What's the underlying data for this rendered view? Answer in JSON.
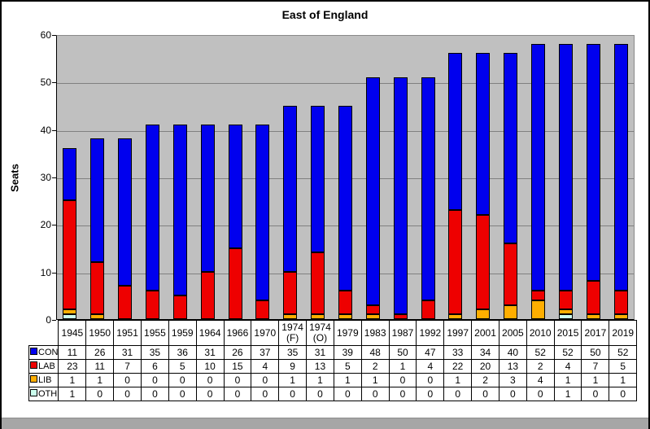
{
  "chart_data": {
    "type": "bar",
    "stacked": true,
    "title": "East of England",
    "ylabel": "Seats",
    "xlabel": "",
    "ylim": [
      0,
      60
    ],
    "yticks": [
      0,
      10,
      20,
      30,
      40,
      50,
      60
    ],
    "grid": "horizontal",
    "plot_bg": "#C0C0C0",
    "legend_position": "table-left-column",
    "categories": [
      "1945",
      "1950",
      "1951",
      "1955",
      "1959",
      "1964",
      "1966",
      "1970",
      "1974 (F)",
      "1974 (O)",
      "1979",
      "1983",
      "1987",
      "1992",
      "1997",
      "2001",
      "2005",
      "2010",
      "2015",
      "2017",
      "2019"
    ],
    "stack_order_bottom_to_top": [
      "OTH",
      "LIB",
      "LAB",
      "CON"
    ],
    "series": [
      {
        "name": "CON",
        "color": "#0000EE",
        "values": [
          11,
          26,
          31,
          35,
          36,
          31,
          26,
          37,
          35,
          31,
          39,
          48,
          50,
          47,
          33,
          34,
          40,
          52,
          52,
          50,
          52
        ]
      },
      {
        "name": "LAB",
        "color": "#EE0000",
        "values": [
          23,
          11,
          7,
          6,
          5,
          10,
          15,
          4,
          9,
          13,
          5,
          2,
          1,
          4,
          22,
          20,
          13,
          2,
          4,
          7,
          5
        ]
      },
      {
        "name": "LIB",
        "color": "#FFAE00",
        "values": [
          1,
          1,
          0,
          0,
          0,
          0,
          0,
          0,
          1,
          1,
          1,
          1,
          0,
          0,
          1,
          2,
          3,
          4,
          1,
          1,
          1
        ]
      },
      {
        "name": "OTH",
        "color": "#CCFFEE",
        "values": [
          1,
          0,
          0,
          0,
          0,
          0,
          0,
          0,
          0,
          0,
          0,
          0,
          0,
          0,
          0,
          0,
          0,
          0,
          1,
          0,
          0
        ]
      }
    ]
  }
}
